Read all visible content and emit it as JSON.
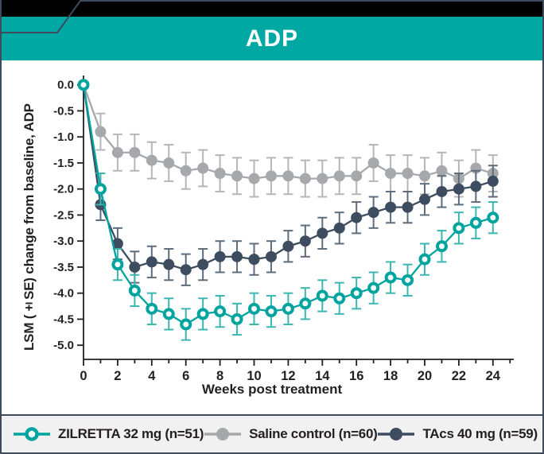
{
  "header": {
    "title": "ADP"
  },
  "chart_data": {
    "type": "line",
    "title": "ADP",
    "xlabel": "Weeks post treatment",
    "ylabel": "LSM (±SE) change from baseline, ADP",
    "x": [
      0,
      1,
      2,
      3,
      4,
      5,
      6,
      7,
      8,
      9,
      10,
      11,
      12,
      13,
      14,
      15,
      16,
      17,
      18,
      19,
      20,
      21,
      22,
      23,
      24
    ],
    "xlim": [
      0,
      25
    ],
    "ylim": [
      -5.0,
      0.0
    ],
    "ytick_step": 0.5,
    "xtick_label_step": 2,
    "grid": false,
    "error_bars": true,
    "legend_position": "bottom",
    "series": [
      {
        "name": "ZILRETTA 32 mg (n=51)",
        "color": "#00a49e",
        "error_color": "#3cb7b0",
        "marker": "open-circle",
        "se": 0.3,
        "values": [
          0.0,
          -2.0,
          -3.45,
          -3.95,
          -4.3,
          -4.4,
          -4.6,
          -4.4,
          -4.35,
          -4.5,
          -4.3,
          -4.35,
          -4.3,
          -4.2,
          -4.05,
          -4.1,
          -4.0,
          -3.9,
          -3.7,
          -3.75,
          -3.35,
          -3.1,
          -2.75,
          -2.65,
          -2.55
        ]
      },
      {
        "name": "Saline control (n=60)",
        "color": "#a6a8ab",
        "error_color": "#b4b6b9",
        "marker": "filled-circle",
        "se": 0.35,
        "values": [
          0.0,
          -0.9,
          -1.3,
          -1.3,
          -1.45,
          -1.5,
          -1.65,
          -1.6,
          -1.7,
          -1.75,
          -1.8,
          -1.75,
          -1.75,
          -1.8,
          -1.8,
          -1.75,
          -1.75,
          -1.5,
          -1.7,
          -1.7,
          -1.75,
          -1.65,
          -1.8,
          -1.6,
          -1.7
        ]
      },
      {
        "name": "TAcs 40 mg (n=59)",
        "color": "#3d4d5f",
        "error_color": "#5e6c7c",
        "marker": "filled-circle",
        "se": 0.3,
        "values": [
          0.0,
          -2.3,
          -3.05,
          -3.5,
          -3.4,
          -3.45,
          -3.55,
          -3.45,
          -3.3,
          -3.3,
          -3.35,
          -3.3,
          -3.1,
          -3.0,
          -2.85,
          -2.75,
          -2.55,
          -2.45,
          -2.35,
          -2.35,
          -2.2,
          -2.05,
          -2.0,
          -1.95,
          -1.85
        ]
      }
    ]
  },
  "colors": {
    "banner_teal": "#00a8a4",
    "top_strip": "#000000",
    "frame": "#3e4b5c",
    "legend_bg": "#f1f1f2",
    "text": "#231f20"
  }
}
